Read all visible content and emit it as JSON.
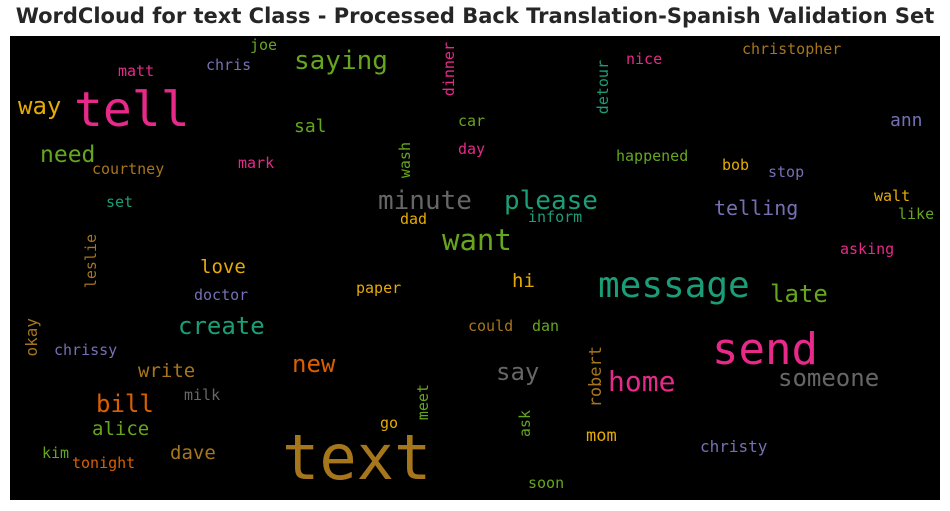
{
  "title": "WordCloud for text Class - Processed Back Translation-Spanish Validation Set",
  "colors": {
    "background": "#000000",
    "title": "#262626",
    "palette": [
      "#e7298a",
      "#a6761d",
      "#1b9e77",
      "#66a61e",
      "#d95f02",
      "#7570b3",
      "#e6ab02",
      "#666666"
    ]
  },
  "words": [
    {
      "id": "tell",
      "text": "tell",
      "color": "#e7298a",
      "vertical": false
    },
    {
      "id": "text",
      "text": "text",
      "color": "#a6761d",
      "vertical": false
    },
    {
      "id": "send",
      "text": "send",
      "color": "#e7298a",
      "vertical": false
    },
    {
      "id": "message",
      "text": "message",
      "color": "#1b9e77",
      "vertical": false
    },
    {
      "id": "saying",
      "text": "saying",
      "color": "#66a61e",
      "vertical": false
    },
    {
      "id": "want",
      "text": "want",
      "color": "#66a61e",
      "vertical": false
    },
    {
      "id": "home",
      "text": "home",
      "color": "#e7298a",
      "vertical": false
    },
    {
      "id": "minute",
      "text": "minute",
      "color": "#666666",
      "vertical": false
    },
    {
      "id": "please",
      "text": "please",
      "color": "#1b9e77",
      "vertical": false
    },
    {
      "id": "need",
      "text": "need",
      "color": "#66a61e",
      "vertical": false
    },
    {
      "id": "way",
      "text": "way",
      "color": "#e6ab02",
      "vertical": false
    },
    {
      "id": "someone",
      "text": "someone",
      "color": "#666666",
      "vertical": false
    },
    {
      "id": "create",
      "text": "create",
      "color": "#1b9e77",
      "vertical": false
    },
    {
      "id": "late",
      "text": "late",
      "color": "#66a61e",
      "vertical": false
    },
    {
      "id": "say",
      "text": "say",
      "color": "#666666",
      "vertical": false
    },
    {
      "id": "new",
      "text": "new",
      "color": "#d95f02",
      "vertical": false
    },
    {
      "id": "bill",
      "text": "bill",
      "color": "#d95f02",
      "vertical": false
    },
    {
      "id": "telling",
      "text": "telling",
      "color": "#7570b3",
      "vertical": false
    },
    {
      "id": "love",
      "text": "love",
      "color": "#e6ab02",
      "vertical": false
    },
    {
      "id": "write",
      "text": "write",
      "color": "#a6761d",
      "vertical": false
    },
    {
      "id": "alice",
      "text": "alice",
      "color": "#66a61e",
      "vertical": false
    },
    {
      "id": "dave",
      "text": "dave",
      "color": "#a6761d",
      "vertical": false
    },
    {
      "id": "hi",
      "text": "hi",
      "color": "#e6ab02",
      "vertical": false
    },
    {
      "id": "mom",
      "text": "mom",
      "color": "#e6ab02",
      "vertical": false
    },
    {
      "id": "sal",
      "text": "sal",
      "color": "#66a61e",
      "vertical": false
    },
    {
      "id": "ann",
      "text": "ann",
      "color": "#7570b3",
      "vertical": false
    },
    {
      "id": "christy",
      "text": "christy",
      "color": "#7570b3",
      "vertical": false
    },
    {
      "id": "happened",
      "text": "happened",
      "color": "#66a61e",
      "vertical": false
    },
    {
      "id": "matt",
      "text": "matt",
      "color": "#e7298a",
      "vertical": false
    },
    {
      "id": "chris",
      "text": "chris",
      "color": "#7570b3",
      "vertical": false
    },
    {
      "id": "joe",
      "text": "joe",
      "color": "#66a61e",
      "vertical": false
    },
    {
      "id": "christopher",
      "text": "christopher",
      "color": "#a6761d",
      "vertical": false
    },
    {
      "id": "nice",
      "text": "nice",
      "color": "#e7298a",
      "vertical": false
    },
    {
      "id": "car",
      "text": "car",
      "color": "#66a61e",
      "vertical": false
    },
    {
      "id": "day",
      "text": "day",
      "color": "#e7298a",
      "vertical": false
    },
    {
      "id": "mark",
      "text": "mark",
      "color": "#e7298a",
      "vertical": false
    },
    {
      "id": "courtney",
      "text": "courtney",
      "color": "#a6761d",
      "vertical": false
    },
    {
      "id": "set",
      "text": "set",
      "color": "#1b9e77",
      "vertical": false
    },
    {
      "id": "bob",
      "text": "bob",
      "color": "#e6ab02",
      "vertical": false
    },
    {
      "id": "stop",
      "text": "stop",
      "color": "#7570b3",
      "vertical": false
    },
    {
      "id": "walt",
      "text": "walt",
      "color": "#e6ab02",
      "vertical": false
    },
    {
      "id": "like",
      "text": "like",
      "color": "#66a61e",
      "vertical": false
    },
    {
      "id": "inform",
      "text": "inform",
      "color": "#1b9e77",
      "vertical": false
    },
    {
      "id": "dad",
      "text": "dad",
      "color": "#e6ab02",
      "vertical": false
    },
    {
      "id": "asking",
      "text": "asking",
      "color": "#e7298a",
      "vertical": false
    },
    {
      "id": "doctor",
      "text": "doctor",
      "color": "#7570b3",
      "vertical": false
    },
    {
      "id": "paper",
      "text": "paper",
      "color": "#e6ab02",
      "vertical": false
    },
    {
      "id": "could",
      "text": "could",
      "color": "#a6761d",
      "vertical": false
    },
    {
      "id": "dan",
      "text": "dan",
      "color": "#66a61e",
      "vertical": false
    },
    {
      "id": "chrissy",
      "text": "chrissy",
      "color": "#7570b3",
      "vertical": false
    },
    {
      "id": "milk",
      "text": "milk",
      "color": "#666666",
      "vertical": false
    },
    {
      "id": "kim",
      "text": "kim",
      "color": "#66a61e",
      "vertical": false
    },
    {
      "id": "tonight",
      "text": "tonight",
      "color": "#d95f02",
      "vertical": false
    },
    {
      "id": "go",
      "text": "go",
      "color": "#e6ab02",
      "vertical": false
    },
    {
      "id": "soon",
      "text": "soon",
      "color": "#66a61e",
      "vertical": false
    },
    {
      "id": "dinner",
      "text": "dinner",
      "color": "#e7298a",
      "vertical": true
    },
    {
      "id": "detour",
      "text": "detour",
      "color": "#1b9e77",
      "vertical": true
    },
    {
      "id": "wash",
      "text": "wash",
      "color": "#66a61e",
      "vertical": true
    },
    {
      "id": "leslie",
      "text": "leslie",
      "color": "#a6761d",
      "vertical": true
    },
    {
      "id": "okay",
      "text": "okay",
      "color": "#a6761d",
      "vertical": true
    },
    {
      "id": "robert",
      "text": "robert",
      "color": "#a6761d",
      "vertical": true
    },
    {
      "id": "meet",
      "text": "meet",
      "color": "#66a61e",
      "vertical": true
    },
    {
      "id": "ask",
      "text": "ask",
      "color": "#66a61e",
      "vertical": true
    }
  ]
}
